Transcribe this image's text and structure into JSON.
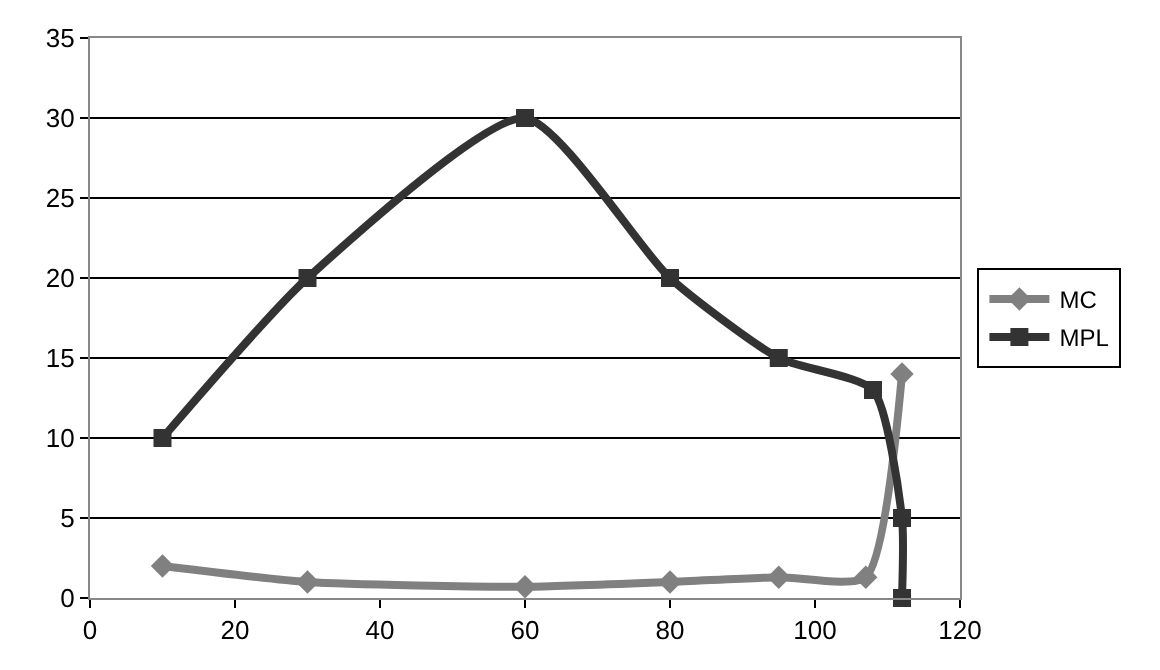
{
  "chart_data": {
    "type": "line",
    "xlim": [
      0,
      120
    ],
    "xticks": [
      0,
      20,
      40,
      60,
      80,
      100,
      120
    ],
    "ylim": [
      0,
      35
    ],
    "yticks": [
      0,
      5,
      10,
      15,
      20,
      25,
      30,
      35
    ],
    "grid": "y",
    "legend": "right",
    "series": [
      {
        "name": "MC",
        "color": "#808080",
        "marker": "diamond",
        "x": [
          10,
          30,
          60,
          80,
          95,
          107,
          112
        ],
        "values": [
          2,
          1,
          0.7,
          1,
          1.3,
          1.3,
          14
        ]
      },
      {
        "name": "MPL",
        "color": "#333333",
        "marker": "square",
        "x": [
          10,
          30,
          60,
          80,
          95,
          108,
          112,
          112
        ],
        "values": [
          10,
          20,
          30,
          20,
          15,
          13,
          5,
          0
        ]
      }
    ]
  }
}
